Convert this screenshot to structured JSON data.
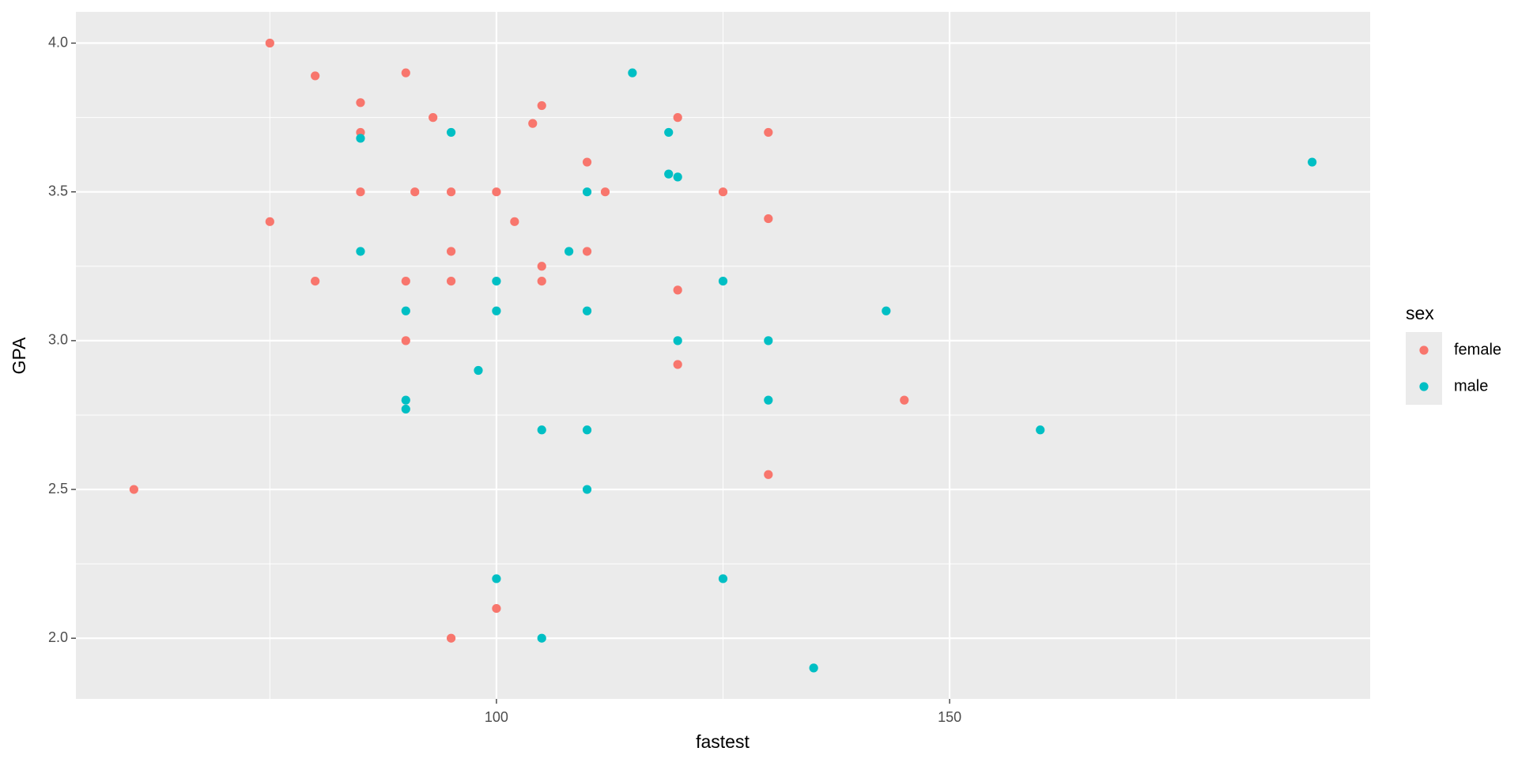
{
  "chart_data": {
    "type": "scatter",
    "x_label": "fastest",
    "y_label": "GPA",
    "legend_title": "sex",
    "xlim": [
      53.6,
      196.4
    ],
    "ylim": [
      1.796,
      4.105
    ],
    "xticks": [
      100,
      150
    ],
    "yticks": [
      {
        "value": 2,
        "label": "2.0"
      },
      2.5,
      {
        "value": 3,
        "label": "3.0"
      },
      3.5,
      {
        "value": 4,
        "label": "4.0"
      }
    ],
    "grid": true,
    "legend_position": "right",
    "series": [
      {
        "name": "female",
        "color": "#F8766D",
        "x": [
          75,
          80,
          90,
          85,
          85,
          93,
          105,
          104,
          110,
          120,
          130,
          85,
          91,
          95,
          100,
          112,
          125,
          75,
          102,
          130,
          95,
          105,
          110,
          80,
          90,
          95,
          105,
          120,
          90,
          120,
          145,
          130,
          60,
          95,
          100
        ],
        "values": [
          4.0,
          3.89,
          3.9,
          3.8,
          3.7,
          3.75,
          3.79,
          3.73,
          3.6,
          3.75,
          3.7,
          3.5,
          3.5,
          3.5,
          3.5,
          3.5,
          3.5,
          3.4,
          3.4,
          3.41,
          3.3,
          3.25,
          3.3,
          3.2,
          3.2,
          3.2,
          3.2,
          3.17,
          3.0,
          2.92,
          2.8,
          2.55,
          2.5,
          2.0,
          2.1
        ]
      },
      {
        "name": "male",
        "color": "#00BFC4",
        "x": [
          115,
          95,
          119,
          85,
          119,
          120,
          110,
          190,
          85,
          108,
          100,
          125,
          90,
          100,
          110,
          143,
          120,
          130,
          98,
          90,
          90,
          130,
          105,
          110,
          160,
          110,
          100,
          125,
          105,
          135
        ],
        "values": [
          3.9,
          3.7,
          3.7,
          3.68,
          3.56,
          3.55,
          3.5,
          3.6,
          3.3,
          3.3,
          3.2,
          3.2,
          3.1,
          3.1,
          3.1,
          3.1,
          3.0,
          3.0,
          2.9,
          2.8,
          2.77,
          2.8,
          2.7,
          2.7,
          2.7,
          2.5,
          2.2,
          2.2,
          2.0,
          1.9
        ]
      }
    ]
  }
}
